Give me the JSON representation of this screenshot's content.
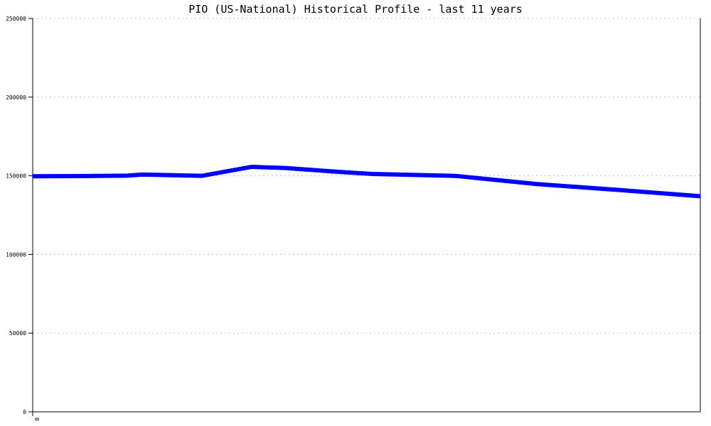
{
  "chart_data": {
    "type": "line",
    "title": "PIO (US-National) Historical Profile - last 11 years",
    "xlabel": "",
    "ylabel": "",
    "ylim": [
      0,
      250000
    ],
    "yticks": [
      0,
      50000,
      100000,
      150000,
      200000,
      250000
    ],
    "ytick_labels": [
      "0",
      "50000",
      "100000",
      "150000",
      "200000",
      "250000"
    ],
    "xtick_labels": [
      "0"
    ],
    "grid": true,
    "series": [
      {
        "color": "#0000ff",
        "x": [
          0,
          9,
          19,
          22,
          34,
          44,
          51,
          60,
          68,
          85,
          101,
          118,
          134
        ],
        "values": [
          149700,
          149800,
          150100,
          150800,
          150000,
          155700,
          154900,
          152800,
          151200,
          149900,
          144800,
          140900,
          137000
        ]
      }
    ]
  }
}
